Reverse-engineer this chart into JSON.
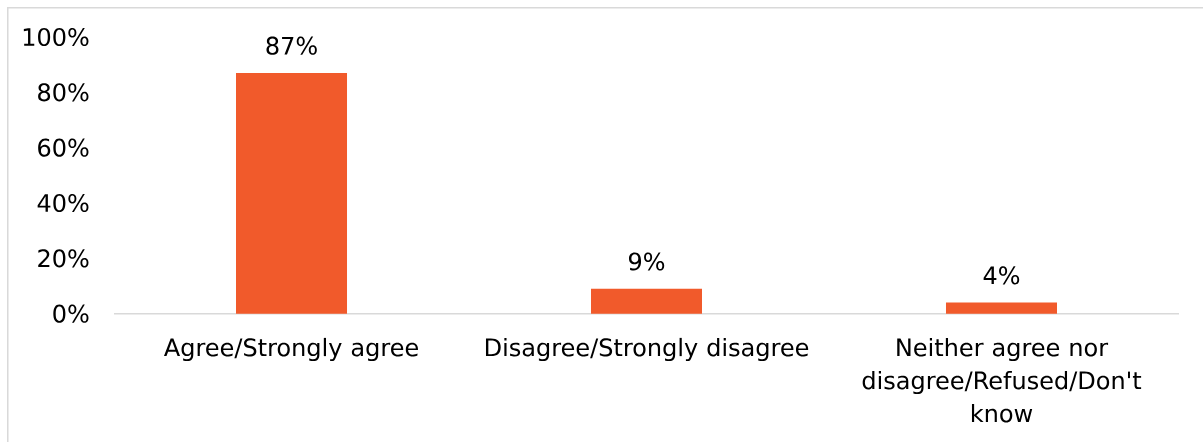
{
  "chart_data": {
    "type": "bar",
    "categories": [
      "Agree/Strongly agree",
      "Disagree/Strongly disagree",
      "Neither agree nor disagree/Refused/Don't know"
    ],
    "values": [
      87,
      9,
      4
    ],
    "color": "#f15a2b",
    "value_labels": [
      "87%",
      "9%",
      "4%"
    ],
    "ylim": [
      0,
      100
    ],
    "yticks": [
      {
        "value": 0,
        "label": "0%"
      },
      {
        "value": 20,
        "label": "20%"
      },
      {
        "value": 40,
        "label": "40%"
      },
      {
        "value": 60,
        "label": "60%"
      },
      {
        "value": 80,
        "label": "80%"
      },
      {
        "value": 100,
        "label": "100%"
      }
    ]
  }
}
